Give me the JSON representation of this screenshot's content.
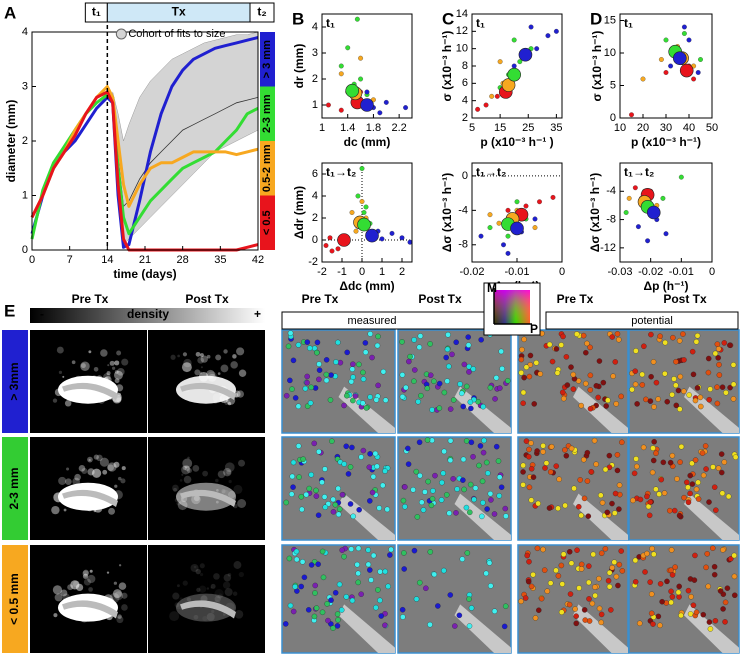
{
  "chart_data": [
    {
      "type": "line",
      "panel_label": "A",
      "ylabel": "diameter (mm)",
      "xlabel": "time (days)",
      "x": [
        0,
        2,
        4,
        6,
        8,
        10,
        12,
        14,
        15,
        16,
        17,
        18,
        20,
        22,
        24,
        26,
        28,
        30,
        32,
        34,
        36,
        38,
        40,
        42
      ],
      "xlim": [
        0,
        42
      ],
      "xticks": [
        0,
        7,
        14,
        21,
        28,
        35,
        42
      ],
      "ylim": [
        0,
        4
      ],
      "yticks": [
        0,
        1,
        2,
        3,
        4
      ],
      "vline": 14,
      "phases": {
        "t1": "t₁",
        "tx": "Tx",
        "t2": "t₂"
      },
      "series": [
        {
          "name": "> 3 mm",
          "color": "#2020d0",
          "values": [
            0.3,
            1.0,
            1.5,
            1.8,
            2.0,
            2.3,
            2.6,
            2.8,
            2.7,
            1.0,
            0.05,
            0.1,
            0.9,
            1.8,
            2.5,
            3.0,
            3.3,
            3.5,
            3.6,
            3.7,
            3.75,
            3.8,
            3.85,
            3.9
          ]
        },
        {
          "name": "2-3 mm",
          "color": "#33dd33",
          "values": [
            0.2,
            1.1,
            1.6,
            1.9,
            2.2,
            2.5,
            2.7,
            2.85,
            2.8,
            1.5,
            0.6,
            0.3,
            0.6,
            0.9,
            1.1,
            1.3,
            1.5,
            1.6,
            1.7,
            1.8,
            2.0,
            2.2,
            2.5,
            2.6
          ]
        },
        {
          "name": "0.5-2 mm",
          "color": "#f7a820",
          "values": [
            0.6,
            1.0,
            1.5,
            1.8,
            2.2,
            2.5,
            2.8,
            3.0,
            2.8,
            2.0,
            1.2,
            0.8,
            1.2,
            1.5,
            1.6,
            1.6,
            1.7,
            1.8,
            1.8,
            1.8,
            1.8,
            1.75,
            1.8,
            1.85
          ]
        },
        {
          "name": "< 0.5",
          "color": "#e8141c",
          "values": [
            0.6,
            1.0,
            1.5,
            1.8,
            2.1,
            2.5,
            2.8,
            2.9,
            2.7,
            1.2,
            0.2,
            0,
            0,
            0,
            0,
            0,
            0,
            0,
            0,
            0,
            0,
            0,
            0.05,
            0.1
          ]
        }
      ],
      "band": {
        "name": "Cohort of fits to size",
        "color": "#d4d4d4",
        "lower": [
          null,
          null,
          null,
          null,
          null,
          null,
          null,
          null,
          2.7,
          1.0,
          0.1,
          0.2,
          0.4,
          0.6,
          0.8,
          1.0,
          1.2,
          1.4,
          1.6,
          1.8,
          1.9,
          2.0,
          2.1,
          2.2
        ],
        "upper": [
          null,
          null,
          null,
          null,
          null,
          null,
          null,
          null,
          2.9,
          2.5,
          2.0,
          2.3,
          2.8,
          3.1,
          3.3,
          3.5,
          3.6,
          3.7,
          3.8,
          3.85,
          3.9,
          3.95,
          3.95,
          4.0
        ],
        "mean": [
          null,
          null,
          null,
          null,
          null,
          null,
          null,
          null,
          2.8,
          1.7,
          0.8,
          0.9,
          1.3,
          1.6,
          1.8,
          2.0,
          2.2,
          2.3,
          2.4,
          2.5,
          2.6,
          2.7,
          2.75,
          2.8
        ]
      }
    },
    {
      "type": "scatter",
      "panel_label": "B",
      "subtitle": "t₁",
      "xlabel": "dc (mm)",
      "ylabel": "dr (mm)",
      "xlim": [
        1,
        2.4
      ],
      "xticks": [
        1,
        1.4,
        1.8,
        2.2
      ],
      "ylim": [
        0.5,
        4.5
      ],
      "yticks": [
        1,
        2,
        3,
        4
      ],
      "series": [
        {
          "color": "#e8141c",
          "x": [
            1.1,
            1.3,
            1.5,
            1.7,
            1.6
          ],
          "y": [
            1.0,
            0.8,
            1.3,
            0.9,
            1.5
          ],
          "mean_x": 1.55,
          "mean_y": 1.1
        },
        {
          "color": "#f7a820",
          "x": [
            1.3,
            1.4,
            1.6,
            1.8,
            1.5
          ],
          "y": [
            2.2,
            1.5,
            2.8,
            1.2,
            1.0
          ],
          "mean_x": 1.52,
          "mean_y": 1.45
        },
        {
          "color": "#33dd33",
          "x": [
            1.3,
            1.5,
            1.7,
            1.4,
            1.6,
            1.55
          ],
          "y": [
            2.5,
            1.8,
            1.4,
            3.2,
            2.0,
            4.3
          ],
          "mean_x": 1.47,
          "mean_y": 1.55
        },
        {
          "color": "#2020d0",
          "x": [
            1.6,
            1.8,
            1.9,
            2.0,
            2.3,
            1.7
          ],
          "y": [
            1.2,
            0.9,
            0.7,
            1.1,
            0.9,
            1.5
          ],
          "mean_x": 1.7,
          "mean_y": 1.0
        }
      ]
    },
    {
      "type": "scatter",
      "subtitle": "t₁→t₂",
      "xlabel": "Δdc (mm)",
      "ylabel": "Δdr (mm)",
      "xlim": [
        -2,
        2.5
      ],
      "xticks": [
        -2,
        -1,
        0,
        1,
        2
      ],
      "ylim": [
        -2,
        7
      ],
      "yticks": [
        -2,
        0,
        2,
        4,
        6
      ],
      "hline": 0,
      "vline": 0,
      "series": [
        {
          "color": "#e8141c",
          "x": [
            -1.8,
            -1.5,
            -1.2,
            -1.6,
            -0.8
          ],
          "y": [
            -0.5,
            -1.0,
            -0.8,
            0.2,
            -0.3
          ],
          "mean_x": -0.9,
          "mean_y": 0
        },
        {
          "color": "#f7a820",
          "x": [
            -0.5,
            0,
            0.3,
            -0.3,
            0.2
          ],
          "y": [
            2.5,
            3.5,
            1.2,
            0.8,
            2.0
          ],
          "mean_x": -0.1,
          "mean_y": 1.6
        },
        {
          "color": "#33dd33",
          "x": [
            -0.2,
            0.1,
            0.4,
            0,
            0.2
          ],
          "y": [
            4.0,
            2.5,
            1.5,
            6.5,
            3.0
          ],
          "mean_x": 0.1,
          "mean_y": 1.4
        },
        {
          "color": "#2020d0",
          "x": [
            0.5,
            1.0,
            1.5,
            2.0,
            2.4,
            0.8
          ],
          "y": [
            0.3,
            0.1,
            0.6,
            0.2,
            -0.2,
            0.8
          ],
          "mean_x": 0.5,
          "mean_y": 0.4
        }
      ]
    },
    {
      "type": "scatter",
      "panel_label": "C",
      "subtitle": "t₁",
      "xlabel": "p (x10⁻³ h⁻¹ )",
      "ylabel": "σ (x10⁻³ h⁻¹)",
      "xlim": [
        5,
        37
      ],
      "xticks": [
        5,
        15,
        25,
        35
      ],
      "ylim": [
        2,
        14
      ],
      "yticks": [
        2,
        4,
        6,
        8,
        10,
        12,
        14
      ],
      "series": [
        {
          "color": "#e8141c",
          "x": [
            7,
            10,
            14,
            18
          ],
          "y": [
            3.0,
            3.5,
            4.5,
            5.5
          ],
          "mean_x": 17,
          "mean_y": 5
        },
        {
          "color": "#f7a820",
          "x": [
            12,
            16,
            20,
            25,
            15
          ],
          "y": [
            4.5,
            6,
            7.5,
            9,
            8.5
          ],
          "mean_x": 18,
          "mean_y": 5.8
        },
        {
          "color": "#33dd33",
          "x": [
            15,
            18,
            22,
            26,
            20
          ],
          "y": [
            5.5,
            7,
            8.5,
            10,
            11
          ],
          "mean_x": 20,
          "mean_y": 7
        },
        {
          "color": "#2020d0",
          "x": [
            20,
            24,
            28,
            32,
            35,
            26
          ],
          "y": [
            8,
            9.5,
            10,
            11.5,
            12,
            12.5
          ],
          "mean_x": 24,
          "mean_y": 9.3
        }
      ]
    },
    {
      "type": "scatter",
      "subtitle": "t₁→t₂",
      "xlabel": "Δp (h⁻¹)",
      "ylabel": "Δσ (x10⁻³ h⁻¹)",
      "xlim": [
        -0.02,
        0
      ],
      "xticks": [
        -0.02,
        -0.01,
        0
      ],
      "ylim": [
        -10,
        1.5
      ],
      "yticks": [
        -8,
        -4,
        0
      ],
      "hline": 0,
      "series": [
        {
          "color": "#e8141c",
          "x": [
            -0.008,
            -0.012,
            -0.005,
            -0.002
          ],
          "y": [
            -3.5,
            -4.0,
            -3.0,
            -2.5
          ],
          "mean_x": -0.009,
          "mean_y": -4.5
        },
        {
          "color": "#f7a820",
          "x": [
            -0.014,
            -0.01,
            -0.006,
            -0.016
          ],
          "y": [
            -5.5,
            -4.0,
            -6.0,
            -4.5
          ],
          "mean_x": -0.011,
          "mean_y": -5.0
        },
        {
          "color": "#33dd33",
          "x": [
            -0.016,
            -0.012,
            -0.008,
            -0.01
          ],
          "y": [
            -6,
            -7,
            -5,
            -3
          ],
          "mean_x": -0.012,
          "mean_y": -5.6
        },
        {
          "color": "#2020d0",
          "x": [
            -0.018,
            -0.013,
            -0.009,
            -0.012,
            -0.006
          ],
          "y": [
            -7,
            -8,
            -6.5,
            -9,
            -5
          ],
          "mean_x": -0.01,
          "mean_y": -6.1
        }
      ]
    },
    {
      "type": "scatter",
      "panel_label": "D",
      "subtitle": "t₁",
      "xlabel": "p (x10⁻³ h⁻¹)",
      "ylabel": "σ (x10⁻³ h⁻¹)",
      "xlim": [
        10,
        50
      ],
      "xticks": [
        10,
        20,
        30,
        40,
        50
      ],
      "ylim": [
        0,
        16
      ],
      "yticks": [
        0,
        5,
        10,
        15
      ],
      "series": [
        {
          "color": "#e8141c",
          "x": [
            30,
            40,
            42,
            15
          ],
          "y": [
            7,
            8,
            6,
            0.5
          ],
          "mean_x": 39,
          "mean_y": 7.3
        },
        {
          "color": "#f7a820",
          "x": [
            28,
            35,
            42,
            20
          ],
          "y": [
            9,
            11,
            8,
            6
          ],
          "mean_x": 37,
          "mean_y": 9.2
        },
        {
          "color": "#33dd33",
          "x": [
            30,
            34,
            38,
            45
          ],
          "y": [
            12,
            10,
            13,
            9
          ],
          "mean_x": 34,
          "mean_y": 10.2
        },
        {
          "color": "#2020d0",
          "x": [
            32,
            36,
            40,
            44,
            38
          ],
          "y": [
            8,
            10,
            12,
            7,
            14
          ],
          "mean_x": 36,
          "mean_y": 9.2
        }
      ]
    },
    {
      "type": "scatter",
      "subtitle": "t₁→t₂",
      "xlabel": "Δp (h⁻¹)",
      "ylabel": "Δσ (x10⁻³ h⁻¹)",
      "xlim": [
        -0.03,
        0
      ],
      "xticks": [
        -0.03,
        -0.02,
        -0.01,
        0
      ],
      "ylim": [
        -14,
        0
      ],
      "yticks": [
        -12,
        -8,
        -4
      ],
      "series": [
        {
          "color": "#e8141c",
          "x": [
            -0.025,
            -0.02,
            -0.023
          ],
          "y": [
            -3.5,
            -4,
            -5
          ],
          "mean_x": -0.021,
          "mean_y": -4.5
        },
        {
          "color": "#f7a820",
          "x": [
            -0.027,
            -0.018,
            -0.022
          ],
          "y": [
            -5,
            -6,
            -4
          ],
          "mean_x": -0.022,
          "mean_y": -5.5
        },
        {
          "color": "#33dd33",
          "x": [
            -0.028,
            -0.016,
            -0.01
          ],
          "y": [
            -7,
            -5,
            -2
          ],
          "mean_x": -0.021,
          "mean_y": -6.2
        },
        {
          "color": "#2020d0",
          "x": [
            -0.024,
            -0.018,
            -0.015,
            -0.021
          ],
          "y": [
            -9,
            -8,
            -10,
            -11
          ],
          "mean_x": -0.019,
          "mean_y": -7.0
        }
      ]
    }
  ],
  "panel_e": {
    "panel_label": "E",
    "density": {
      "columns": [
        "Pre Tx",
        "Post Tx"
      ],
      "scale_label": "density",
      "minus": "-",
      "plus": "+"
    },
    "rows": [
      {
        "label": "> 3mm",
        "color": "#2020d0"
      },
      {
        "label": "2-3 mm",
        "color": "#33cc33"
      },
      {
        "label": "< 0.5 mm",
        "color": "#f7a820"
      }
    ],
    "measured": {
      "label": "measured",
      "columns": [
        "Pre Tx",
        "Post Tx"
      ]
    },
    "potential": {
      "label": "potential",
      "columns": [
        "Pre Tx",
        "Post Tx"
      ]
    },
    "color_key": {
      "m": "M",
      "p": "P"
    }
  }
}
